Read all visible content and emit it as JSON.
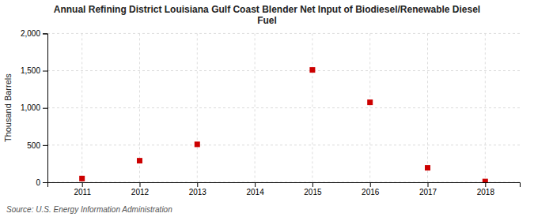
{
  "chart_data": {
    "type": "scatter",
    "title": "Annual Refining District Louisiana Gulf Coast Blender Net Input of Biodiesel/Renewable Diesel\nFuel",
    "ylabel": "Thousand Barrels",
    "source": "Source: U.S. Energy Information Administration",
    "x": [
      2011,
      2012,
      2013,
      2014,
      2015,
      2016,
      2017,
      2018
    ],
    "values": [
      50,
      290,
      510,
      null,
      1510,
      1075,
      195,
      10
    ],
    "color": "#cc0000",
    "marker": "square",
    "xlim": [
      2010.4,
      2018.6
    ],
    "xticks": [
      2011,
      2012,
      2013,
      2014,
      2015,
      2016,
      2017,
      2018
    ],
    "ylim": [
      0,
      2000
    ],
    "yticks": [
      0,
      500,
      {
        "value": 1000,
        "label": "1,000"
      },
      {
        "value": 1500,
        "label": "1,500"
      },
      {
        "value": 2000,
        "label": "2,000"
      }
    ],
    "grid": true
  }
}
